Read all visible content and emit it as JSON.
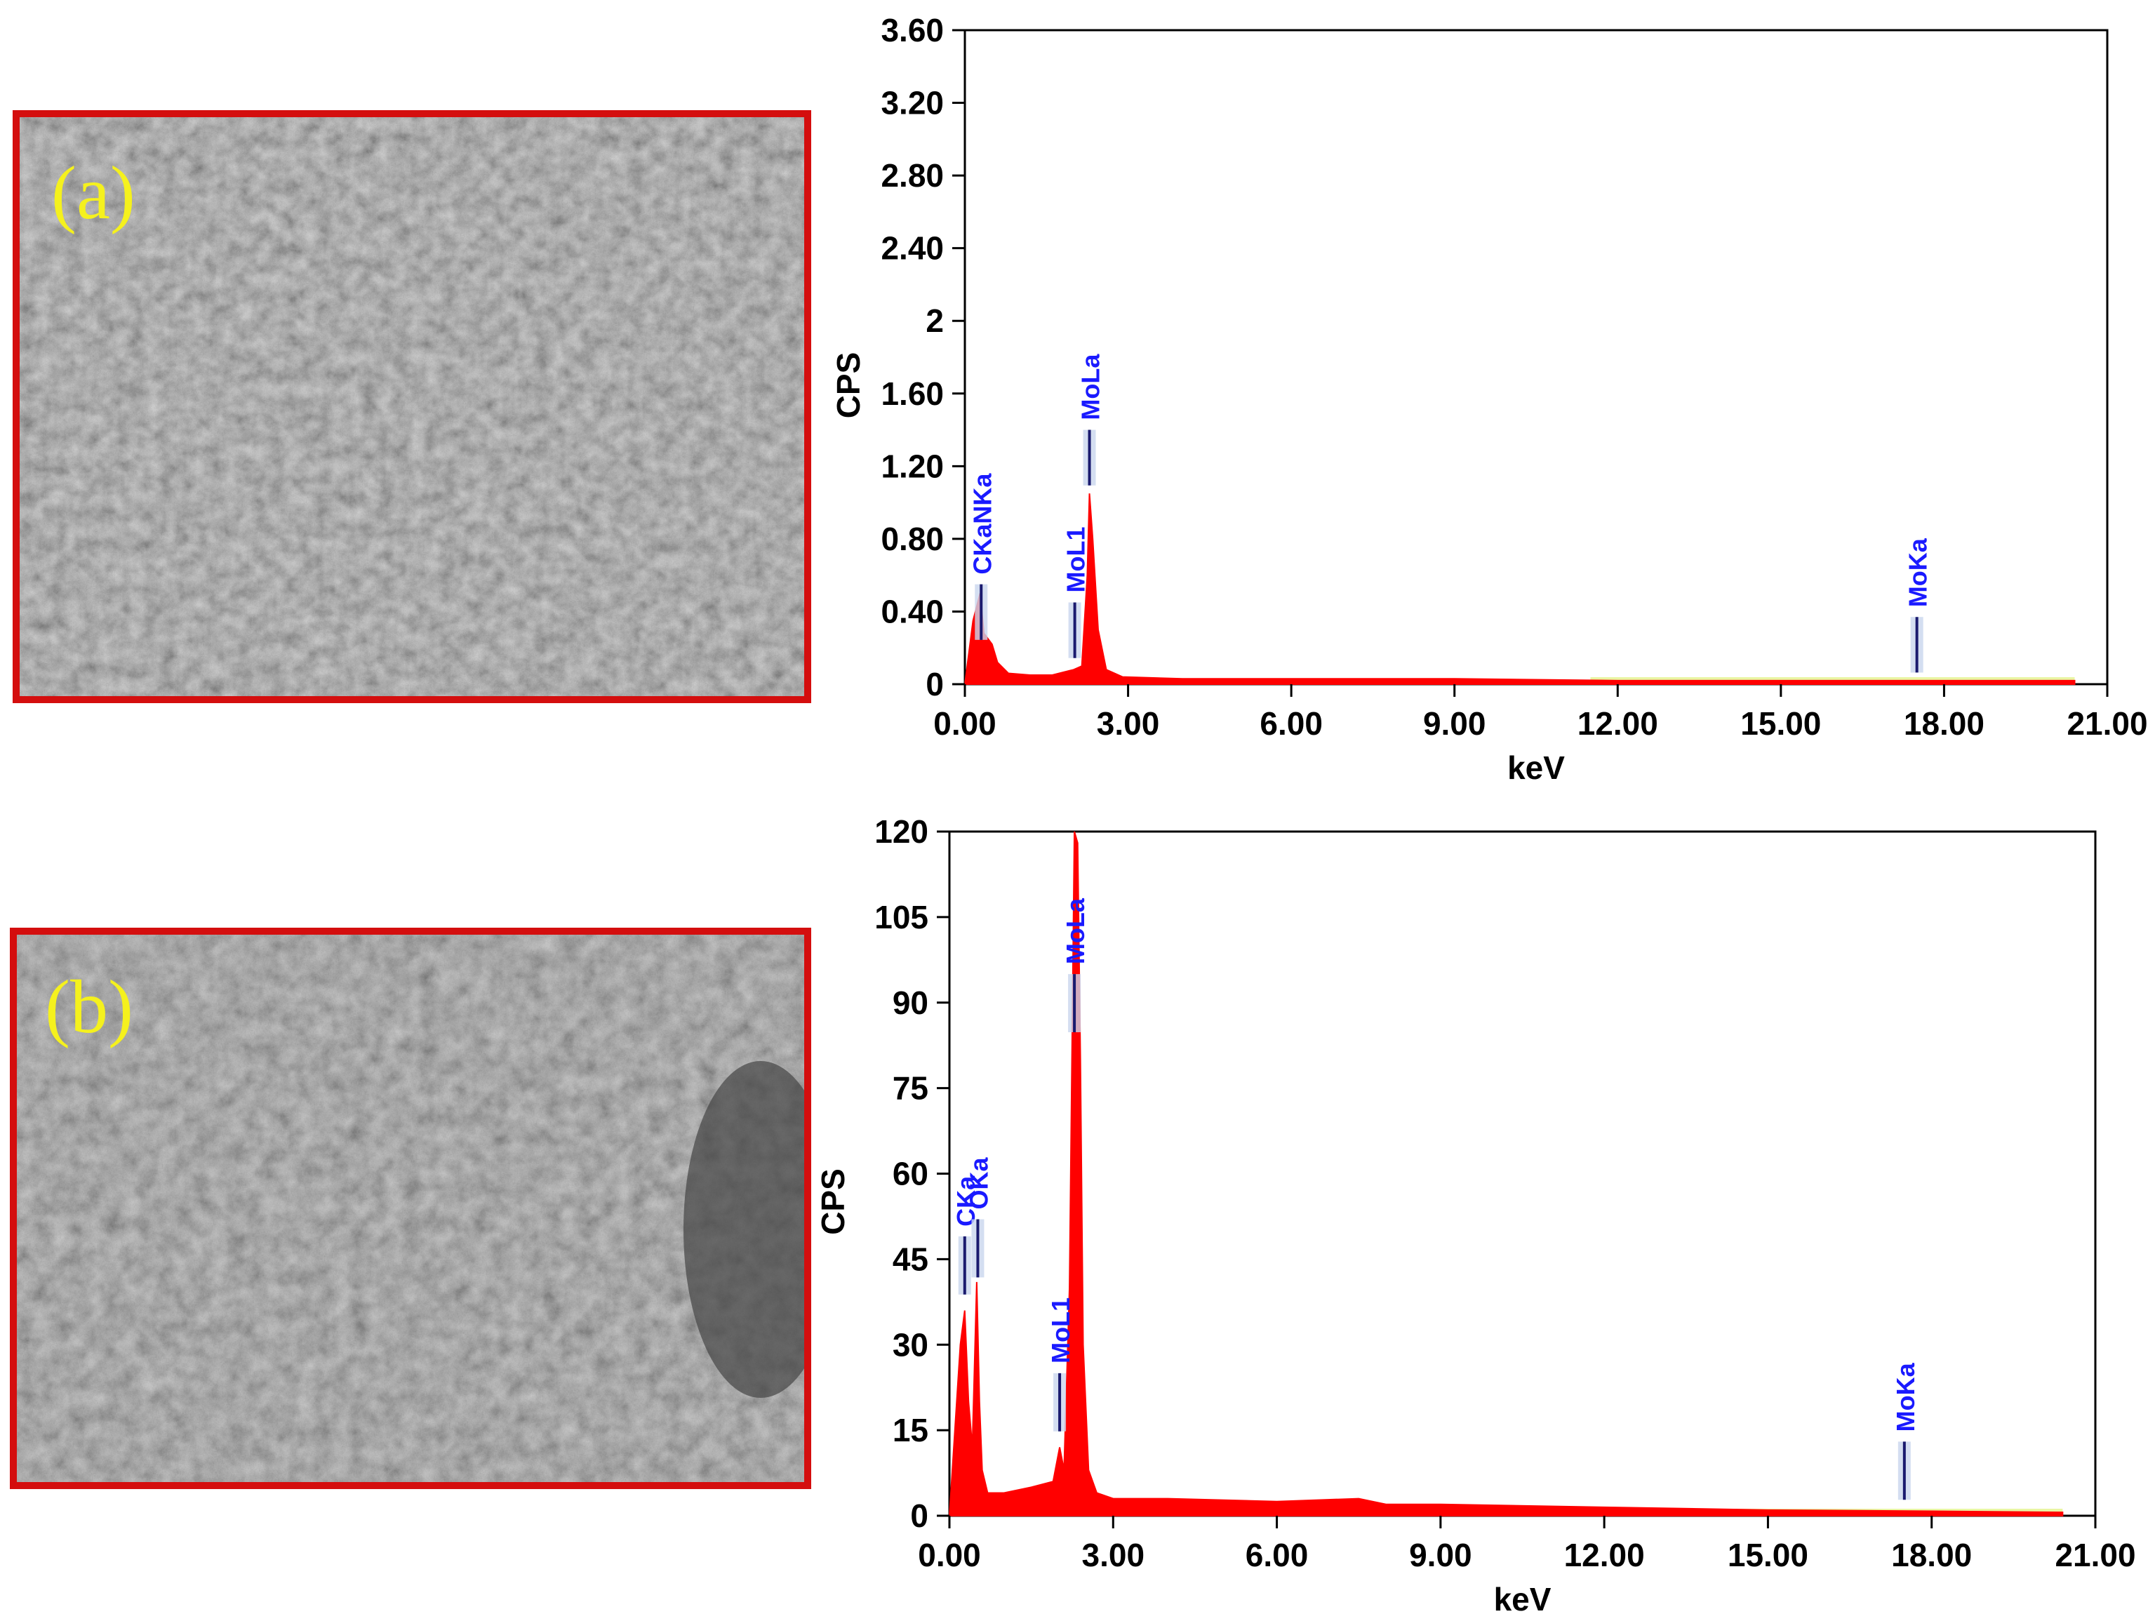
{
  "panels": [
    {
      "label": "(a)"
    },
    {
      "label": "(b)"
    }
  ],
  "colors": {
    "spectrum": "#ff0000",
    "peak_label": "#1a1aff",
    "frame": "#d40e0e",
    "panel_label": "#f5f11d",
    "tail": "#e9f5a3"
  },
  "chart_data": [
    {
      "type": "area",
      "title": "",
      "xlabel": "keV",
      "ylabel": "CPS",
      "xlim": [
        0,
        21
      ],
      "ylim": [
        0,
        3.6
      ],
      "x_ticks": [
        "0.00",
        "3.00",
        "6.00",
        "9.00",
        "12.00",
        "15.00",
        "18.00",
        "21.00"
      ],
      "y_ticks": [
        "0",
        "0.40",
        "0.80",
        "1.20",
        "1.60",
        "2",
        "2.40",
        "2.80",
        "3.20",
        "3.60"
      ],
      "series": [
        {
          "x": [
            0.0,
            0.15,
            0.28,
            0.35,
            0.5,
            0.6,
            0.8,
            1.2,
            1.6,
            2.0,
            2.15,
            2.25,
            2.29,
            2.35,
            2.45,
            2.6,
            2.9,
            4,
            6,
            9,
            12,
            15,
            18,
            20.4
          ],
          "values": [
            0.0,
            0.35,
            0.5,
            0.28,
            0.22,
            0.12,
            0.06,
            0.05,
            0.05,
            0.08,
            0.1,
            0.6,
            1.05,
            0.8,
            0.3,
            0.08,
            0.04,
            0.03,
            0.03,
            0.03,
            0.02,
            0.02,
            0.02,
            0.02
          ]
        }
      ],
      "peaks": [
        {
          "name": "CKaNKa",
          "kev": 0.3,
          "cps": 0.55
        },
        {
          "name": "MoL1",
          "kev": 2.02,
          "cps": 0.45
        },
        {
          "name": "MoLa",
          "kev": 2.29,
          "cps": 1.4
        },
        {
          "name": "MoKa",
          "kev": 17.5,
          "cps": 0.37
        }
      ]
    },
    {
      "type": "area",
      "title": "",
      "xlabel": "keV",
      "ylabel": "CPS",
      "xlim": [
        0,
        21
      ],
      "ylim": [
        0,
        120
      ],
      "x_ticks": [
        "0.00",
        "3.00",
        "6.00",
        "9.00",
        "12.00",
        "15.00",
        "18.00",
        "21.00"
      ],
      "y_ticks": [
        "0",
        "15",
        "30",
        "45",
        "60",
        "75",
        "90",
        "105",
        "120"
      ],
      "series": [
        {
          "x": [
            0.0,
            0.1,
            0.2,
            0.28,
            0.35,
            0.42,
            0.5,
            0.55,
            0.6,
            0.7,
            1.0,
            1.5,
            1.9,
            2.02,
            2.1,
            2.2,
            2.29,
            2.35,
            2.4,
            2.45,
            2.55,
            2.7,
            3,
            4,
            6,
            7.5,
            8,
            9,
            12,
            15,
            18,
            20.4
          ],
          "values": [
            0,
            15,
            30,
            36,
            20,
            12,
            41,
            20,
            8,
            4,
            4,
            5,
            6,
            12,
            8,
            40,
            120,
            118,
            80,
            30,
            8,
            4,
            3,
            3,
            2.5,
            3,
            2,
            2,
            1.5,
            1,
            0.8,
            0.6
          ]
        }
      ],
      "peaks": [
        {
          "name": "CKa",
          "kev": 0.28,
          "cps": 49
        },
        {
          "name": "OKa",
          "kev": 0.52,
          "cps": 52
        },
        {
          "name": "MoL1",
          "kev": 2.02,
          "cps": 25
        },
        {
          "name": "MoLa",
          "kev": 2.29,
          "cps": 95
        },
        {
          "name": "MoKa",
          "kev": 17.5,
          "cps": 13
        }
      ]
    }
  ]
}
